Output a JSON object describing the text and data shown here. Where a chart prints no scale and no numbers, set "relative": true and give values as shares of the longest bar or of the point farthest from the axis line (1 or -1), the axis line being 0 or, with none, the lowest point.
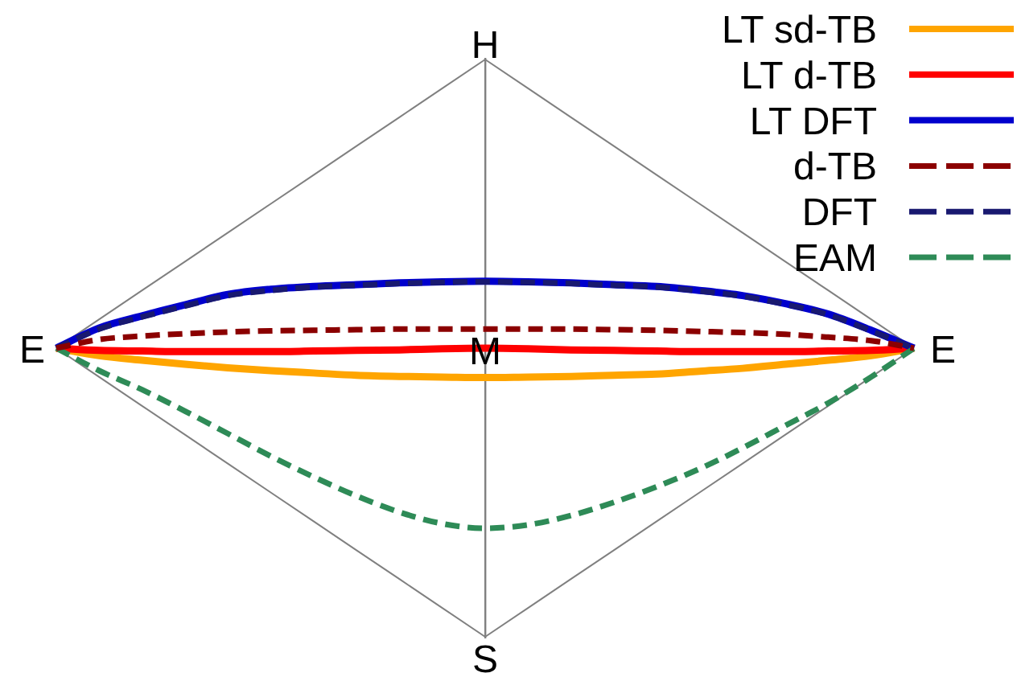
{
  "chart_data": {
    "type": "line",
    "relative": true,
    "tick_labels": false,
    "marker": "none",
    "legend": "top right",
    "categories": [
      null,
      null,
      null,
      null,
      null,
      null,
      null,
      null,
      null,
      null,
      null,
      null,
      null,
      null,
      null,
      null,
      null,
      null,
      null,
      null,
      null
    ],
    "series": [
      {
        "color": "#808080",
        "line_style": "solid",
        "values": [
          0.5,
          0.55,
          0.6,
          0.65,
          0.7,
          0.75,
          0.8,
          0.85,
          0.9,
          0.95,
          1,
          0.95,
          0.9,
          0.85,
          0.8,
          0.75,
          0.7,
          0.65,
          0.6,
          0.55,
          0.5
        ]
      },
      {
        "color": "#808080",
        "line_style": "solid",
        "values": [
          0.5,
          0.45,
          0.4,
          0.35,
          0.3,
          0.25,
          0.2,
          0.15,
          0.1,
          0.05,
          0,
          0.05,
          0.1,
          0.15,
          0.2,
          0.25,
          0.3,
          0.35,
          0.4,
          0.45,
          0.5
        ]
      },
      {
        "name": "LT sd-TB",
        "color": "#ffa500",
        "line_style": "solid",
        "values": [
          0.5,
          0.487,
          0.479,
          0.472,
          0.466,
          0.461,
          0.457,
          0.453,
          0.451,
          0.45,
          0.449,
          0.45,
          0.451,
          0.453,
          0.455,
          0.46,
          0.465,
          0.472,
          0.479,
          0.487,
          0.5
        ]
      },
      {
        "name": "LT d-TB",
        "color": "#ff0000",
        "line_style": "solid",
        "values": [
          0.5,
          0.496,
          0.495,
          0.494,
          0.494,
          0.494,
          0.495,
          0.496,
          0.497,
          0.499,
          0.5,
          0.499,
          0.497,
          0.496,
          0.495,
          0.494,
          0.494,
          0.494,
          0.495,
          0.496,
          0.5
        ]
      },
      {
        "name": "LT DFT",
        "color": "#0000cd",
        "line_style": "solid",
        "values": [
          0.5,
          0.535,
          0.556,
          0.575,
          0.593,
          0.602,
          0.607,
          0.61,
          0.613,
          0.615,
          0.616,
          0.615,
          0.613,
          0.61,
          0.607,
          0.6,
          0.591,
          0.577,
          0.559,
          0.531,
          0.5
        ]
      },
      {
        "name": "d-TB",
        "color": "#8b0000",
        "line_style": "dashed",
        "values": [
          0.5,
          0.515,
          0.521,
          0.525,
          0.528,
          0.53,
          0.531,
          0.532,
          0.533,
          0.533,
          0.533,
          0.533,
          0.533,
          0.532,
          0.531,
          0.529,
          0.527,
          0.524,
          0.519,
          0.513,
          0.5
        ]
      },
      {
        "name": "DFT",
        "color": "#191970",
        "line_style": "dashed",
        "values": [
          0.5,
          0.533,
          0.554,
          0.573,
          0.591,
          0.6,
          0.606,
          0.609,
          0.612,
          0.614,
          0.615,
          0.614,
          0.612,
          0.609,
          0.606,
          0.599,
          0.59,
          0.576,
          0.558,
          0.53,
          0.5
        ]
      },
      {
        "name": "EAM",
        "color": "#2e8b57",
        "line_style": "dashed",
        "values": [
          0.5,
          0.461,
          0.428,
          0.391,
          0.352,
          0.313,
          0.277,
          0.244,
          0.216,
          0.196,
          0.188,
          0.194,
          0.21,
          0.233,
          0.26,
          0.291,
          0.327,
          0.366,
          0.405,
          0.45,
          0.5
        ]
      }
    ],
    "annotations": [
      "H",
      "E",
      "M",
      "E",
      "S"
    ]
  }
}
